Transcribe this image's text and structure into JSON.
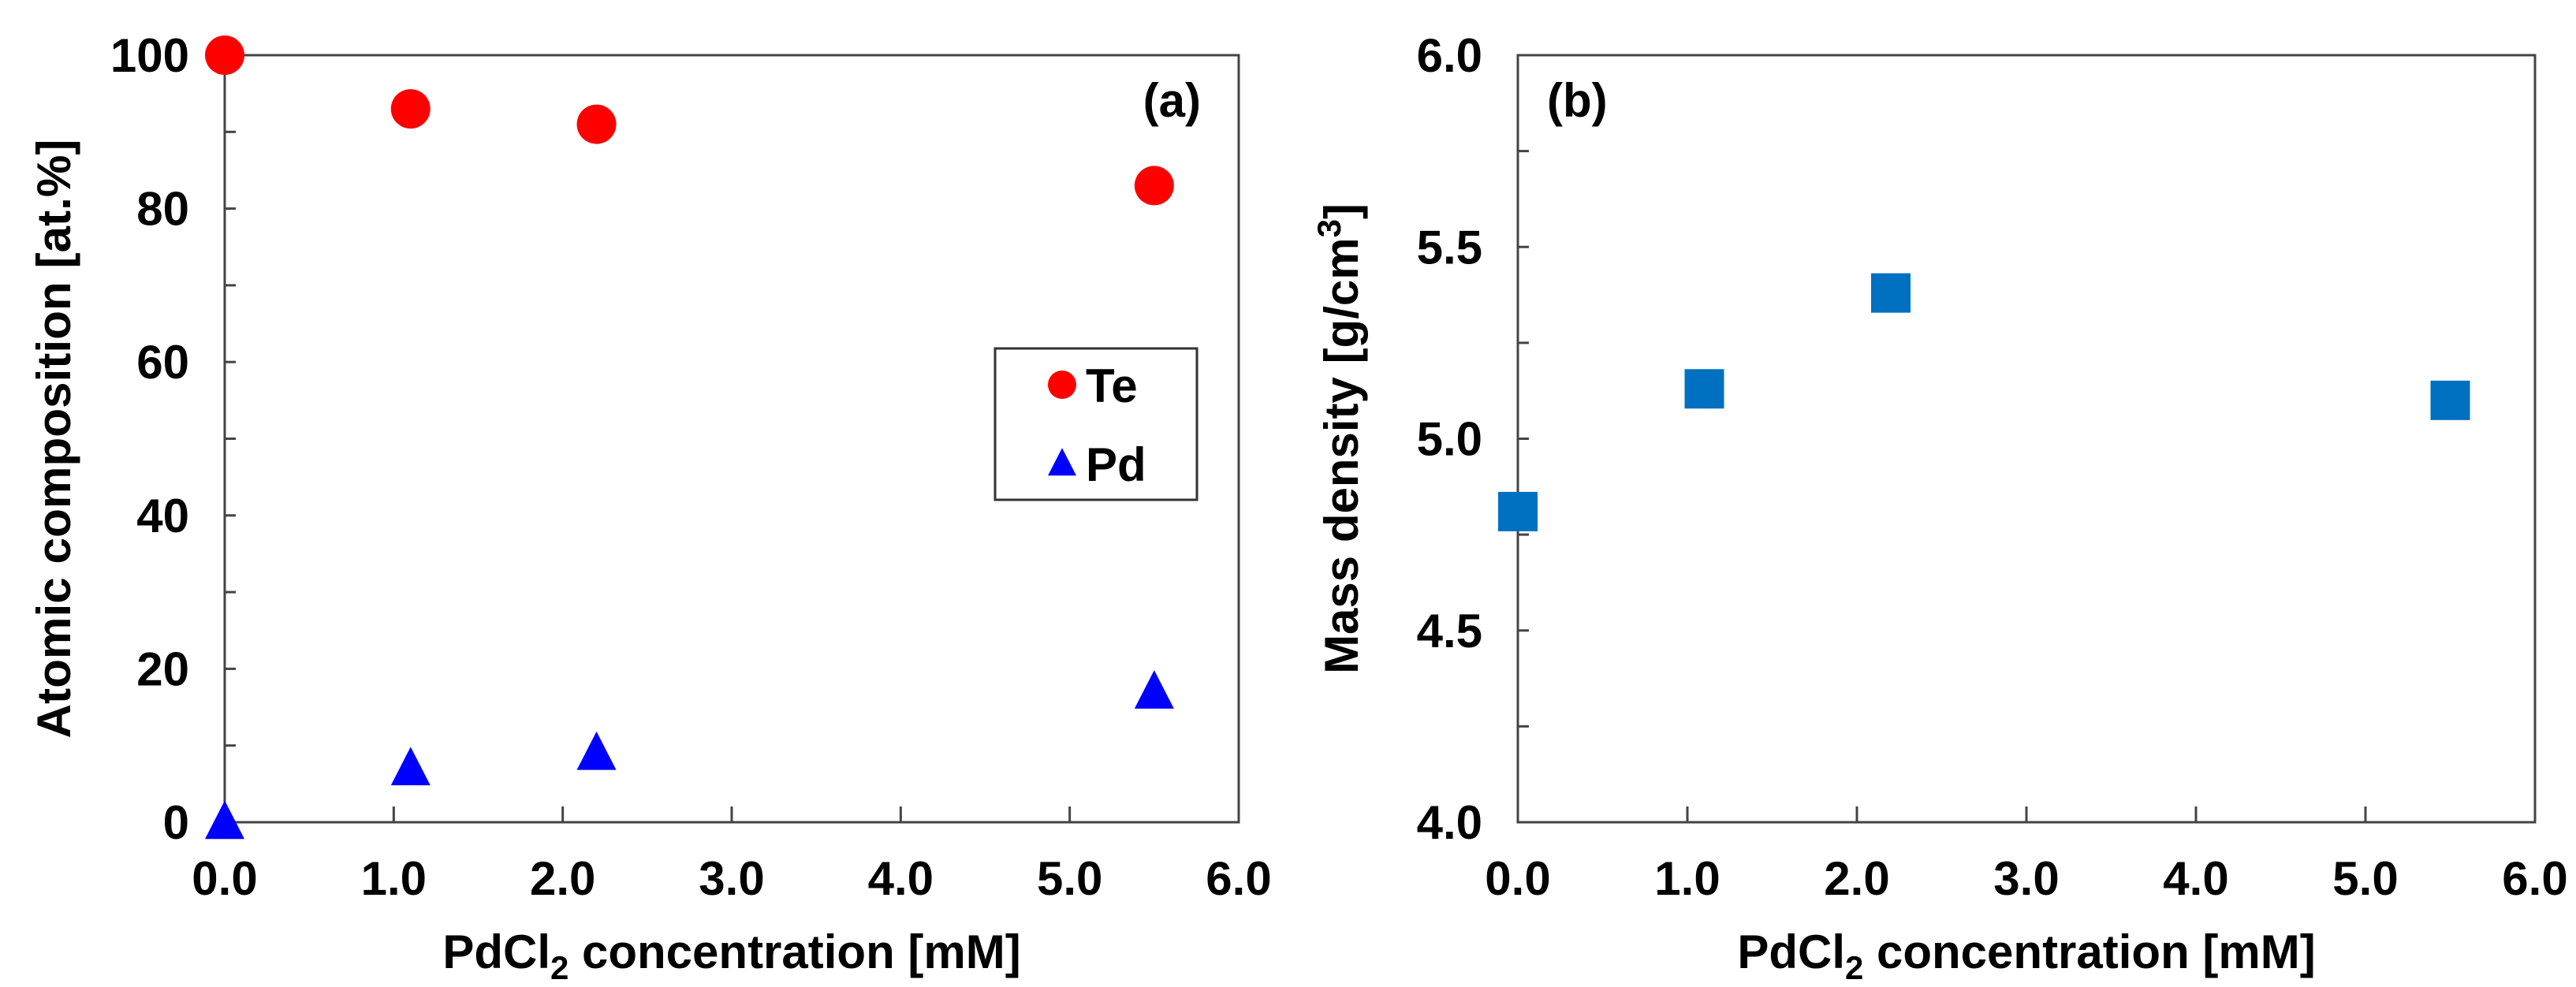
{
  "chart_data": [
    {
      "type": "scatter",
      "panel_label": "(a)",
      "xlabel": "PdCl",
      "xlabel_sub": "2",
      "xlabel_rest": " concentration [mM]",
      "ylabel": "Atomic composition [at.%]",
      "xlim": [
        0,
        6
      ],
      "ylim": [
        0,
        100
      ],
      "xticks": [
        "0.0",
        "1.0",
        "2.0",
        "3.0",
        "4.0",
        "5.0",
        "6.0"
      ],
      "yticks": [
        "0",
        "20",
        "40",
        "60",
        "80",
        "100"
      ],
      "grid": false,
      "legend_placement": "right",
      "x": [
        0,
        1.1,
        2.2,
        5.5
      ],
      "series": [
        {
          "name": "Te",
          "marker": "circle",
          "color": "#ff0000",
          "values": [
            100,
            93,
            91,
            83
          ]
        },
        {
          "name": "Pd",
          "marker": "triangle",
          "color": "#0000ff",
          "values": [
            0,
            7,
            9,
            17
          ]
        }
      ]
    },
    {
      "type": "scatter",
      "panel_label": "(b)",
      "xlabel": "PdCl",
      "xlabel_sub": "2",
      "xlabel_rest": " concentration [mM]",
      "ylabel": "Mass density [g/cm",
      "ylabel_sup": "3",
      "ylabel_rest": "]",
      "xlim": [
        0,
        6
      ],
      "ylim": [
        4,
        6
      ],
      "xticks": [
        "0.0",
        "1.0",
        "2.0",
        "3.0",
        "4.0",
        "5.0",
        "6.0"
      ],
      "yticks": [
        "4.0",
        "4.5",
        "5.0",
        "5.5",
        "6.0"
      ],
      "grid": false,
      "x": [
        0,
        1.1,
        2.2,
        5.5
      ],
      "series": [
        {
          "marker": "square",
          "color": "#0070c0",
          "values": [
            4.81,
            5.13,
            5.38,
            5.1
          ]
        }
      ]
    }
  ]
}
